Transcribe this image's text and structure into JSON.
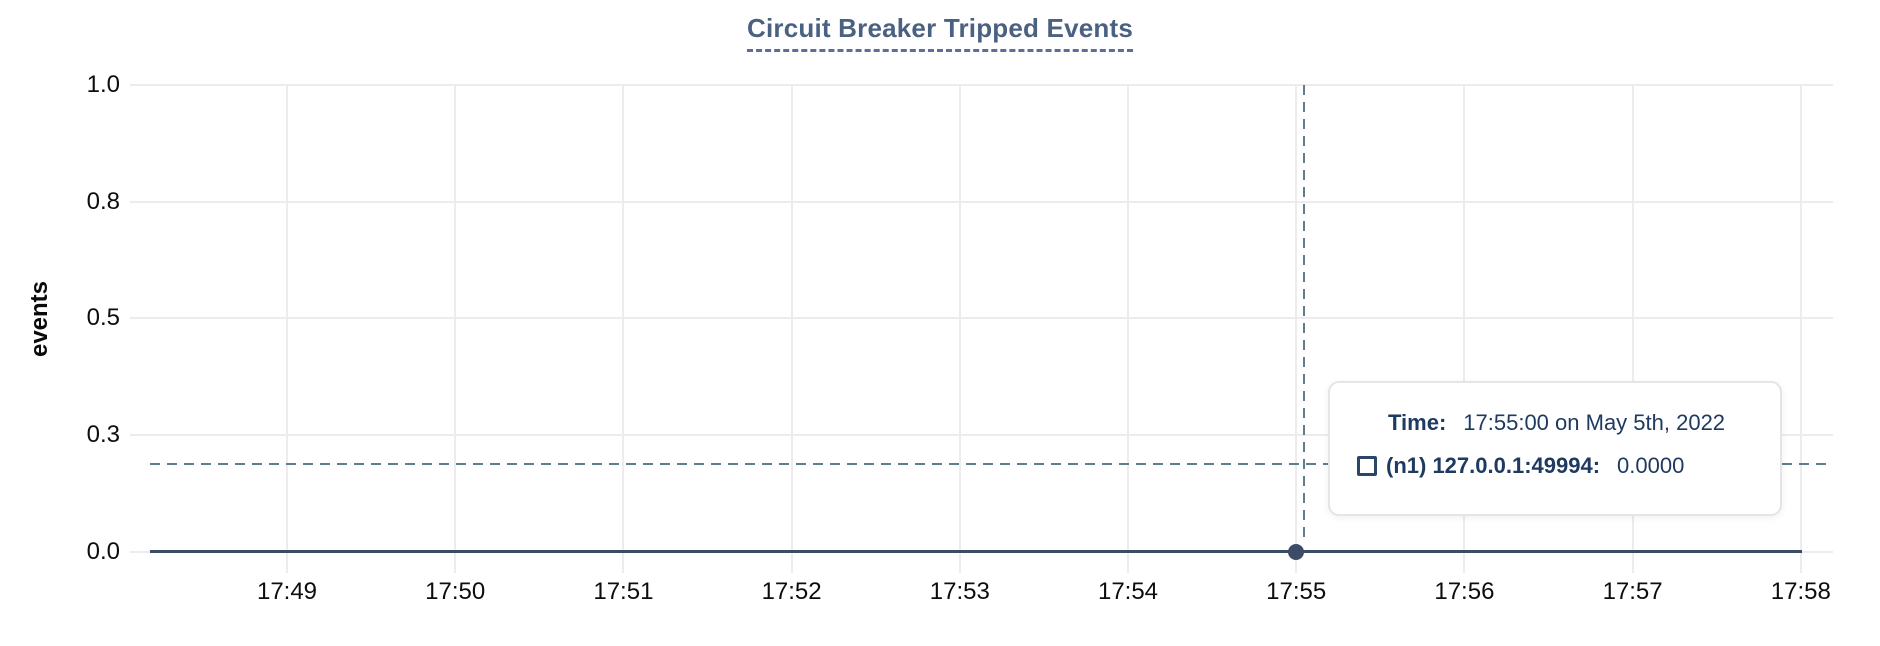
{
  "title": {
    "text": "Circuit Breaker Tripped Events"
  },
  "chart_data": {
    "type": "line",
    "title": "Circuit Breaker Tripped Events",
    "xlabel": "",
    "ylabel": "events",
    "ylim": [
      0.0,
      1.0
    ],
    "grid": true,
    "x_tick_labels": [
      "17:49",
      "17:50",
      "17:51",
      "17:52",
      "17:53",
      "17:54",
      "17:55",
      "17:56",
      "17:57",
      "17:58"
    ],
    "y_tick_labels": [
      "1.0",
      "0.8",
      "0.5",
      "0.3",
      "0.0"
    ],
    "y_tick_values": [
      1.0,
      0.75,
      0.5,
      0.25,
      0.0
    ],
    "series": [
      {
        "name": "(n1) 127.0.0.1:49994",
        "x": [
          "17:49",
          "17:50",
          "17:51",
          "17:52",
          "17:53",
          "17:54",
          "17:55",
          "17:56",
          "17:57",
          "17:58"
        ],
        "values": [
          0,
          0,
          0,
          0,
          0,
          0,
          0,
          0,
          0,
          0
        ]
      }
    ],
    "highlight_point": {
      "x": "17:55:00",
      "y": 0.0,
      "series": "(n1) 127.0.0.1:49994"
    }
  },
  "tooltip": {
    "time_label": "Time:",
    "time_value": "17:55:00 on May 5th, 2022",
    "series_label": "(n1) 127.0.0.1:49994:",
    "series_value": "0.0000",
    "swatch_icon": "hollow-square-swatch"
  },
  "colors": {
    "title": "#4a6181",
    "title_underline": "#5c6f9b",
    "series_line": "#3c4c66",
    "crosshair": "#607d8b",
    "gridline": "#ececec",
    "tick_text": "#0d0d0d",
    "tooltip_text": "#1e3a60",
    "tooltip_border": "#e3e5ea"
  }
}
